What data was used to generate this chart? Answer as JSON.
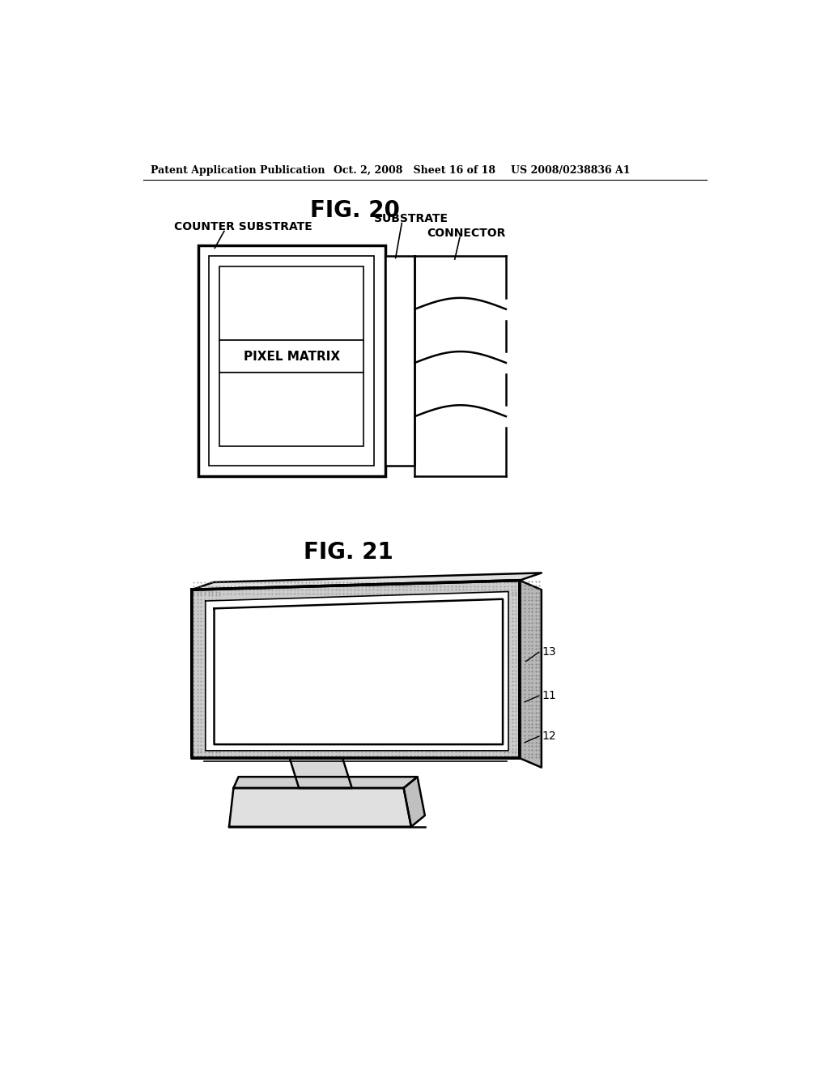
{
  "header_left": "Patent Application Publication",
  "header_mid": "Oct. 2, 2008   Sheet 16 of 18",
  "header_right": "US 2008/0238836 A1",
  "fig20_title": "FIG. 20",
  "fig21_title": "FIG. 21",
  "label_counter_substrate": "COUNTER SUBSTRATE",
  "label_substrate": "SUBSTRATE",
  "label_connector": "CONNECTOR",
  "label_pixel_matrix": "PIXEL MATRIX",
  "label_13": "13",
  "label_11": "11",
  "label_12": "12",
  "bg_color": "#ffffff",
  "line_color": "#000000",
  "gray_light": "#cccccc",
  "gray_med": "#aaaaaa",
  "gray_dark": "#888888"
}
